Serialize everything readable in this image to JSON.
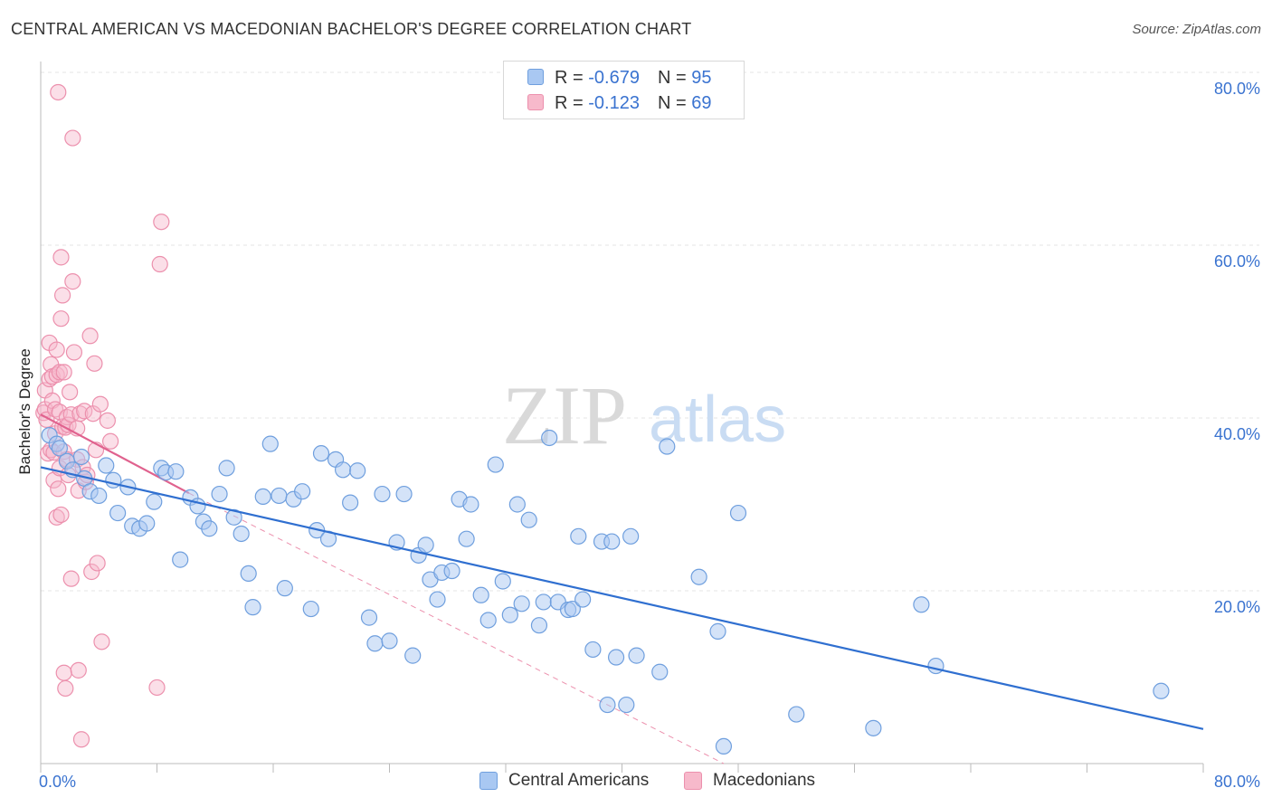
{
  "header": {
    "title": "CENTRAL AMERICAN VS MACEDONIAN BACHELOR'S DEGREE CORRELATION CHART",
    "source": "Source: ZipAtlas.com"
  },
  "watermark": {
    "zip": "ZIP",
    "atlas": "atlas"
  },
  "legend": {
    "rows": [
      {
        "r_label": "R = ",
        "r_value": "-0.679",
        "n_label": "N = ",
        "n_value": "95",
        "color": "#a9c8f2"
      },
      {
        "r_label": "R = ",
        "r_value": "-0.123",
        "n_label": "N = ",
        "n_value": "69",
        "color": "#f7b9cb"
      }
    ]
  },
  "bottom_legend": [
    {
      "label": "Central Americans",
      "color": "#a9c8f2"
    },
    {
      "label": "Macedonians",
      "color": "#f7b9cb"
    }
  ],
  "colors": {
    "blue_fill": "#a9c8f2",
    "blue_stroke": "#6f9fde",
    "blue_line": "#2f6fd0",
    "pink_fill": "#f7b9cb",
    "pink_stroke": "#ec90ad",
    "pink_line": "#e0628e",
    "grid": "#e4e4e4",
    "axis_text": "#3a73d0"
  },
  "chart_data": {
    "type": "scatter",
    "title": "CENTRAL AMERICAN VS MACEDONIAN BACHELOR'S DEGREE CORRELATION CHART",
    "xlabel": "",
    "ylabel": "Bachelor's Degree",
    "xlim": [
      0,
      80
    ],
    "ylim": [
      0,
      80
    ],
    "x_tick_labels": [
      "0.0%",
      "80.0%"
    ],
    "y_tick_labels": [
      "20.0%",
      "40.0%",
      "60.0%",
      "80.0%"
    ],
    "y_ticks": [
      20,
      40,
      60,
      80
    ],
    "grid": true,
    "legend_position": "top-center",
    "series": [
      {
        "name": "Central Americans",
        "r": -0.679,
        "n": 95,
        "trend": {
          "x": [
            0,
            80
          ],
          "y": [
            34.3,
            4.0
          ],
          "style": "solid"
        },
        "points": [
          [
            0.6,
            38.0
          ],
          [
            1.1,
            37.0
          ],
          [
            1.3,
            36.5
          ],
          [
            1.8,
            35.0
          ],
          [
            2.2,
            34.0
          ],
          [
            2.8,
            35.5
          ],
          [
            3.0,
            33.0
          ],
          [
            3.4,
            31.5
          ],
          [
            4.0,
            31.0
          ],
          [
            4.5,
            34.5
          ],
          [
            5.0,
            32.8
          ],
          [
            5.3,
            29.0
          ],
          [
            6.0,
            32.0
          ],
          [
            6.3,
            27.5
          ],
          [
            6.8,
            27.2
          ],
          [
            7.3,
            27.8
          ],
          [
            7.8,
            30.3
          ],
          [
            8.3,
            34.2
          ],
          [
            8.6,
            33.7
          ],
          [
            9.3,
            33.8
          ],
          [
            9.6,
            23.6
          ],
          [
            10.3,
            30.8
          ],
          [
            10.8,
            29.8
          ],
          [
            11.2,
            28.0
          ],
          [
            11.6,
            27.2
          ],
          [
            12.3,
            31.2
          ],
          [
            12.8,
            34.2
          ],
          [
            13.3,
            28.5
          ],
          [
            13.8,
            26.6
          ],
          [
            14.3,
            22.0
          ],
          [
            14.6,
            18.1
          ],
          [
            15.3,
            30.9
          ],
          [
            15.8,
            37.0
          ],
          [
            16.4,
            31.0
          ],
          [
            16.8,
            20.3
          ],
          [
            17.4,
            30.6
          ],
          [
            18.0,
            31.5
          ],
          [
            18.6,
            17.9
          ],
          [
            19.0,
            27.0
          ],
          [
            19.3,
            35.9
          ],
          [
            19.8,
            26.0
          ],
          [
            20.3,
            35.2
          ],
          [
            20.8,
            34.0
          ],
          [
            21.3,
            30.2
          ],
          [
            21.8,
            33.9
          ],
          [
            22.6,
            16.9
          ],
          [
            23.0,
            13.9
          ],
          [
            23.5,
            31.2
          ],
          [
            24.0,
            14.2
          ],
          [
            24.5,
            25.6
          ],
          [
            25.0,
            31.2
          ],
          [
            25.6,
            12.5
          ],
          [
            26.0,
            24.1
          ],
          [
            26.5,
            25.3
          ],
          [
            26.8,
            21.3
          ],
          [
            27.3,
            19.0
          ],
          [
            27.6,
            22.1
          ],
          [
            28.3,
            22.3
          ],
          [
            28.8,
            30.6
          ],
          [
            29.3,
            26.0
          ],
          [
            29.6,
            30.0
          ],
          [
            30.3,
            19.5
          ],
          [
            30.8,
            16.6
          ],
          [
            31.3,
            34.6
          ],
          [
            31.8,
            21.1
          ],
          [
            32.3,
            17.2
          ],
          [
            32.8,
            30.0
          ],
          [
            33.1,
            18.5
          ],
          [
            33.6,
            28.2
          ],
          [
            34.3,
            16.0
          ],
          [
            34.6,
            18.7
          ],
          [
            35.0,
            37.7
          ],
          [
            35.6,
            18.7
          ],
          [
            36.3,
            17.8
          ],
          [
            36.6,
            17.9
          ],
          [
            37.0,
            26.3
          ],
          [
            37.3,
            19.0
          ],
          [
            38.0,
            13.2
          ],
          [
            38.6,
            25.7
          ],
          [
            39.0,
            6.8
          ],
          [
            39.3,
            25.7
          ],
          [
            39.6,
            12.3
          ],
          [
            40.3,
            6.8
          ],
          [
            40.6,
            26.3
          ],
          [
            41.0,
            12.5
          ],
          [
            42.6,
            10.6
          ],
          [
            43.1,
            36.7
          ],
          [
            45.3,
            21.6
          ],
          [
            46.6,
            15.3
          ],
          [
            47.0,
            2.0
          ],
          [
            48.0,
            29.0
          ],
          [
            52.0,
            5.7
          ],
          [
            57.3,
            4.1
          ],
          [
            60.6,
            18.4
          ],
          [
            61.6,
            11.3
          ],
          [
            77.1,
            8.4
          ]
        ]
      },
      {
        "name": "Macedonians",
        "r": -0.123,
        "n": 69,
        "trend": {
          "x": [
            0,
            10.2
          ],
          "y": [
            40.4,
            31.3
          ],
          "style": "solid",
          "dashed_extension": {
            "x": [
              10.2,
              47.0
            ],
            "y": [
              31.3,
              0
            ]
          }
        },
        "points": [
          [
            0.2,
            40.6
          ],
          [
            0.3,
            43.2
          ],
          [
            0.3,
            41.0
          ],
          [
            0.4,
            39.8
          ],
          [
            0.5,
            35.9
          ],
          [
            0.6,
            44.5
          ],
          [
            0.6,
            48.7
          ],
          [
            0.7,
            36.3
          ],
          [
            0.7,
            46.2
          ],
          [
            0.8,
            44.8
          ],
          [
            0.8,
            42.0
          ],
          [
            0.9,
            32.8
          ],
          [
            0.9,
            36.0
          ],
          [
            1.0,
            38.2
          ],
          [
            1.0,
            41.0
          ],
          [
            1.1,
            47.9
          ],
          [
            1.1,
            45.0
          ],
          [
            1.1,
            28.5
          ],
          [
            1.2,
            31.8
          ],
          [
            1.2,
            77.7
          ],
          [
            1.3,
            40.7
          ],
          [
            1.3,
            34.2
          ],
          [
            1.3,
            45.3
          ],
          [
            1.4,
            58.6
          ],
          [
            1.4,
            51.5
          ],
          [
            1.4,
            28.8
          ],
          [
            1.5,
            54.2
          ],
          [
            1.5,
            39.0
          ],
          [
            1.6,
            36.1
          ],
          [
            1.6,
            45.3
          ],
          [
            1.6,
            10.5
          ],
          [
            1.7,
            8.7
          ],
          [
            1.7,
            38.9
          ],
          [
            1.8,
            35.2
          ],
          [
            1.8,
            40.1
          ],
          [
            1.9,
            33.4
          ],
          [
            1.9,
            39.2
          ],
          [
            2.0,
            43.0
          ],
          [
            2.1,
            21.4
          ],
          [
            2.1,
            40.4
          ],
          [
            2.2,
            55.8
          ],
          [
            2.2,
            72.4
          ],
          [
            2.3,
            47.6
          ],
          [
            2.5,
            38.8
          ],
          [
            2.5,
            35.2
          ],
          [
            2.6,
            31.6
          ],
          [
            2.6,
            10.8
          ],
          [
            2.7,
            40.5
          ],
          [
            2.8,
            2.8
          ],
          [
            2.9,
            34.3
          ],
          [
            3.0,
            40.8
          ],
          [
            3.1,
            32.6
          ],
          [
            3.2,
            33.4
          ],
          [
            3.4,
            49.5
          ],
          [
            3.5,
            22.2
          ],
          [
            3.6,
            40.5
          ],
          [
            3.7,
            46.3
          ],
          [
            3.8,
            36.3
          ],
          [
            3.9,
            23.2
          ],
          [
            4.1,
            41.6
          ],
          [
            4.2,
            14.1
          ],
          [
            4.6,
            39.7
          ],
          [
            4.8,
            37.3
          ],
          [
            8.0,
            8.8
          ],
          [
            8.2,
            57.8
          ],
          [
            8.3,
            62.7
          ]
        ]
      }
    ]
  }
}
